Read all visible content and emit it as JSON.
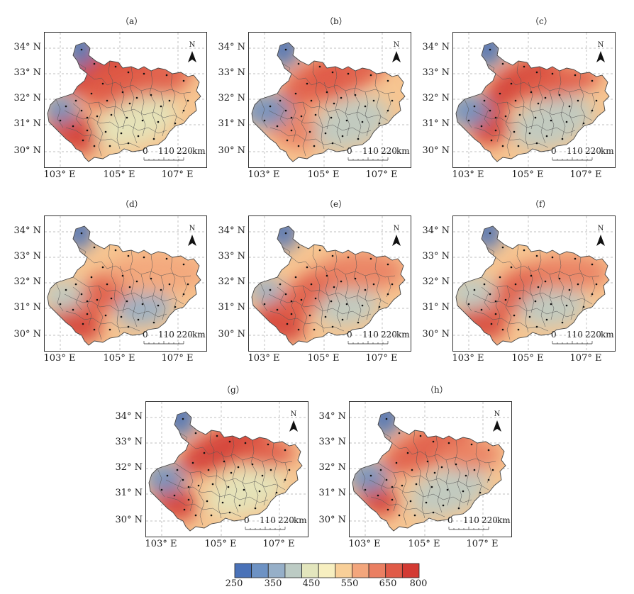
{
  "panels": [
    {
      "label": "（a）",
      "variant": "a"
    },
    {
      "label": "（b）",
      "variant": "b"
    },
    {
      "label": "（c）",
      "variant": "c"
    },
    {
      "label": "（d）",
      "variant": "d"
    },
    {
      "label": "（e）",
      "variant": "e"
    },
    {
      "label": "（f）",
      "variant": "f"
    },
    {
      "label": "（g）",
      "variant": "g"
    },
    {
      "label": "（h）",
      "variant": "h"
    }
  ],
  "axes": {
    "lat_labels": [
      "34° N",
      "33° N",
      "32° N",
      "31° N",
      "30° N"
    ],
    "lon_labels": [
      "103° E",
      "105° E",
      "107° E"
    ]
  },
  "north_label": "N",
  "scalebar": {
    "ticks": [
      "0",
      "110",
      "220"
    ],
    "unit": "km"
  },
  "legend": {
    "colors": [
      "#4a72b8",
      "#6d92c4",
      "#96afc8",
      "#bccbc4",
      "#e3e6bd",
      "#f7efc0",
      "#f8cf98",
      "#f3a67c",
      "#ea7f62",
      "#e05b48",
      "#d33a33"
    ],
    "tick_labels": [
      "250",
      "350",
      "450",
      "550",
      "650",
      "800"
    ]
  }
}
